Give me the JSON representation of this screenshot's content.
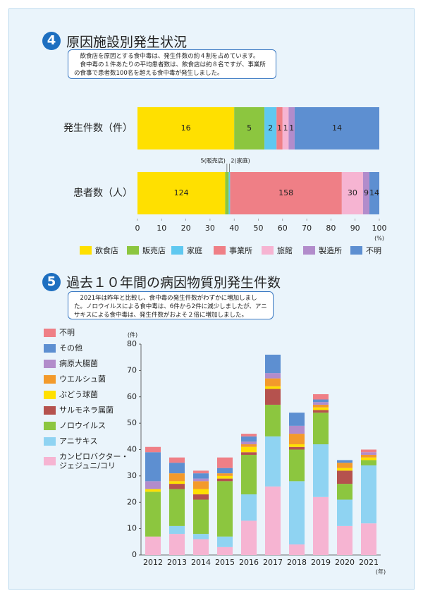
{
  "sections": [
    {
      "number": "4",
      "title": "原因施設別発生状況",
      "text": [
        "飲食店を原因とする食中毒は、発生件数の約４割を占めています。",
        "食中毒の１件あたりの平均患者数は、飲食店は約８名ですが、事業所の食事で患者数100名を超える食中毒が発生しました。"
      ]
    },
    {
      "number": "5",
      "title": "過去１０年間の病因物質別発生件数",
      "text": [
        "2021年は昨年と比較し、食中毒の発生件数がわずかに増加しました。ノロウイルスによる食中毒は、6件から2件に減少しましたが、アニサキスによる食中毒は、発生件数がおよそ２倍に増加しました。"
      ]
    }
  ],
  "chart_data": [
    {
      "type": "bar",
      "orientation": "horizontal",
      "stacked": "percent",
      "categories": [
        "発生件数（件）",
        "患者数（人）"
      ],
      "series": [
        {
          "name": "飲食店",
          "color": "#ffe000",
          "values": [
            16,
            124
          ]
        },
        {
          "name": "販売店",
          "color": "#8cc63f",
          "values": [
            5,
            5
          ],
          "value_labels": [
            "5",
            "5(販売店)"
          ]
        },
        {
          "name": "家庭",
          "color": "#5fc8f0",
          "values": [
            2,
            2
          ],
          "value_labels": [
            "2",
            "2(家庭)"
          ]
        },
        {
          "name": "事業所",
          "color": "#ef7f86",
          "values": [
            1,
            158
          ]
        },
        {
          "name": "旅館",
          "color": "#f6b4d2",
          "values": [
            1,
            30
          ]
        },
        {
          "name": "製造所",
          "color": "#b28ccb",
          "values": [
            1,
            9
          ]
        },
        {
          "name": "不明",
          "color": "#5d8fd1",
          "values": [
            14,
            14
          ]
        }
      ],
      "xlim": [
        0,
        100
      ],
      "xticks": [
        0,
        10,
        20,
        30,
        40,
        50,
        60,
        70,
        80,
        90,
        100
      ],
      "xlabel": "(%)",
      "legend": "bottom"
    },
    {
      "type": "bar",
      "orientation": "vertical",
      "stacked": "absolute",
      "categories": [
        "2012",
        "2013",
        "2014",
        "2015",
        "2016",
        "2017",
        "2018",
        "2019",
        "2020",
        "2021"
      ],
      "series": [
        {
          "name": "カンピロバクター・ジェジュニ/コリ",
          "color": "#f6b4d2",
          "values": [
            7,
            8,
            6,
            3,
            13,
            26,
            4,
            22,
            11,
            12
          ]
        },
        {
          "name": "アニサキス",
          "color": "#8fd3f2",
          "values": [
            0,
            3,
            2,
            4,
            10,
            19,
            24,
            20,
            10,
            22
          ]
        },
        {
          "name": "ノロウイルス",
          "color": "#8cc63f",
          "values": [
            17,
            14,
            13,
            21,
            15,
            12,
            12,
            12,
            6,
            2
          ]
        },
        {
          "name": "サルモネラ属菌",
          "color": "#b5524e",
          "values": [
            0,
            2,
            2,
            1,
            1,
            6,
            1,
            1,
            5,
            0
          ]
        },
        {
          "name": "ぶどう球菌",
          "color": "#ffe000",
          "values": [
            1,
            1,
            2,
            1,
            2,
            1,
            1,
            1,
            1,
            1
          ]
        },
        {
          "name": "ウエルシュ菌",
          "color": "#f39a2b",
          "values": [
            0,
            3,
            3,
            1,
            1,
            3,
            4,
            1,
            2,
            1
          ]
        },
        {
          "name": "病原大腸菌",
          "color": "#b28ccb",
          "values": [
            3,
            0,
            1,
            0,
            1,
            2,
            3,
            1,
            0,
            1
          ]
        },
        {
          "name": "その他",
          "color": "#5d8fd1",
          "values": [
            11,
            4,
            2,
            2,
            2,
            7,
            5,
            1,
            1,
            0
          ]
        },
        {
          "name": "不明",
          "color": "#ef7f86",
          "values": [
            2,
            2,
            1,
            4,
            1,
            0,
            0,
            2,
            0,
            1
          ]
        }
      ],
      "ylim": [
        0,
        80
      ],
      "yticks": [
        0,
        10,
        20,
        30,
        40,
        50,
        60,
        70,
        80
      ],
      "ylabel": "(件)",
      "xlabel": "(年)",
      "legend": "left",
      "grid": false
    }
  ]
}
